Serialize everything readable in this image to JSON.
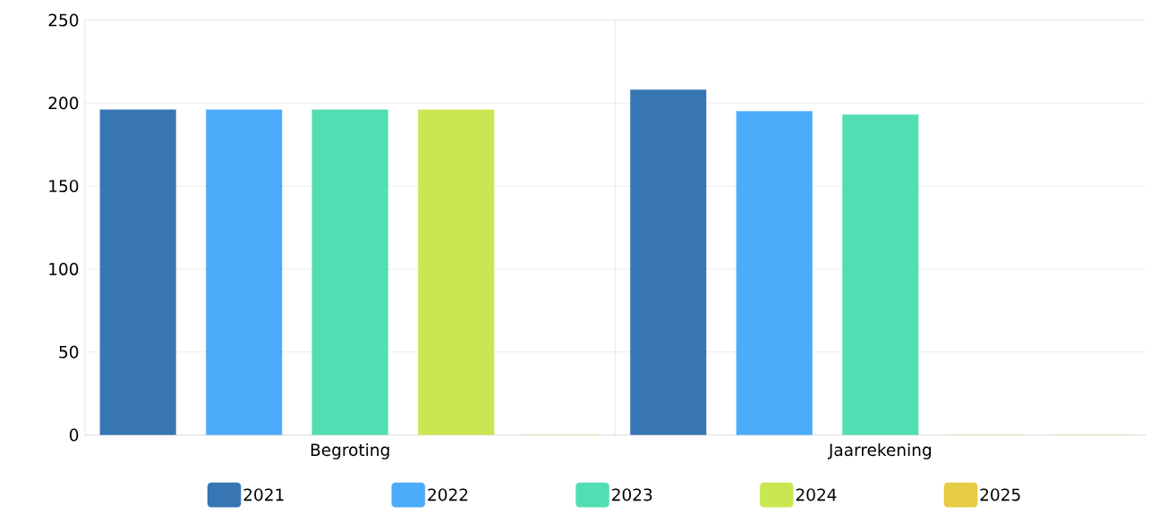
{
  "chart_data": {
    "type": "bar",
    "categories": [
      "Begroting",
      "Jaarrekening"
    ],
    "series": [
      {
        "name": "2021",
        "color": "#3776b3",
        "values": [
          196,
          208
        ]
      },
      {
        "name": "2022",
        "color": "#4dabfc",
        "values": [
          196,
          195
        ]
      },
      {
        "name": "2023",
        "color": "#52deb3",
        "values": [
          196,
          193
        ]
      },
      {
        "name": "2024",
        "color": "#c9e752",
        "values": [
          196,
          0
        ]
      },
      {
        "name": "2025",
        "color": "#e6cb44",
        "values": [
          0,
          0
        ]
      }
    ],
    "ylim": [
      0,
      250
    ],
    "yticks": [
      0,
      50,
      100,
      150,
      200,
      250
    ],
    "grid": true,
    "legend": "bottom"
  }
}
